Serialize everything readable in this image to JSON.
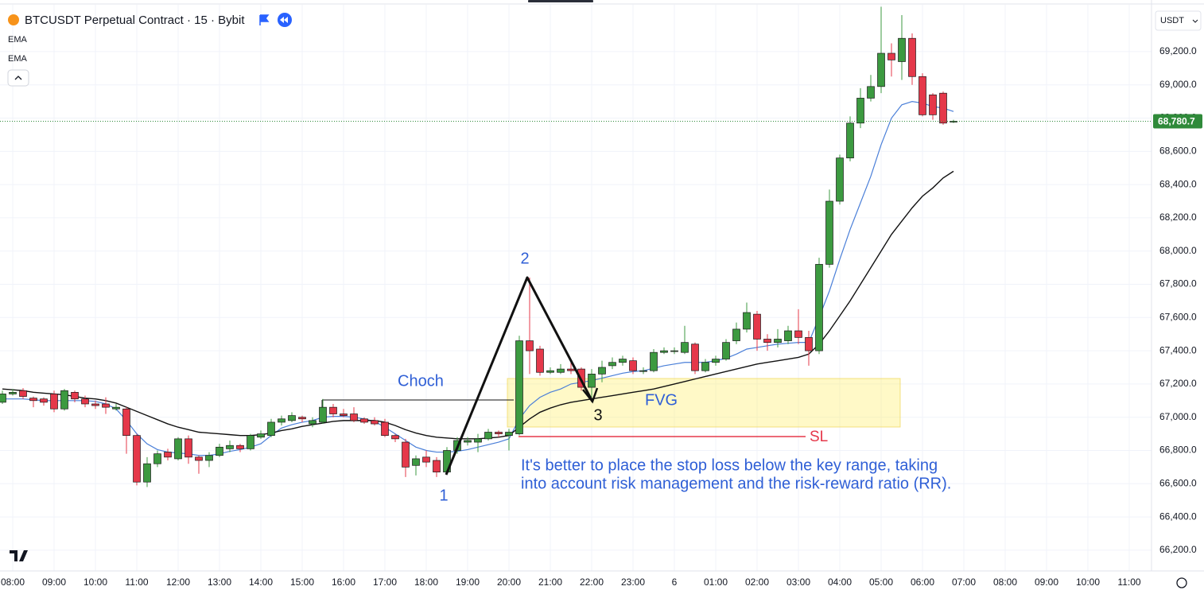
{
  "chart_data": {
    "type": "candlestick",
    "title": "BTCUSDT Perpetual Contract · 15 · Bybit",
    "currency": "USDT",
    "up_color": "#3c9a40",
    "down_color": "#e5384a",
    "grid": true,
    "ylim": [
      66075,
      69482
    ],
    "yticks": [
      {
        "value": 66200,
        "label": "66,200.0"
      },
      {
        "value": 66400,
        "label": "66,400.0"
      },
      {
        "value": 66600,
        "label": "66,600.0"
      },
      {
        "value": 66800,
        "label": "66,800.0"
      },
      {
        "value": 67000,
        "label": "67,000.0"
      },
      {
        "value": 67200,
        "label": "67,200.0"
      },
      {
        "value": 67400,
        "label": "67,400.0"
      },
      {
        "value": 67600,
        "label": "67,600.0"
      },
      {
        "value": 67800,
        "label": "67,800.0"
      },
      {
        "value": 68000,
        "label": "68,000.0"
      },
      {
        "value": 68200,
        "label": "68,200.0"
      },
      {
        "value": 68400,
        "label": "68,400.0"
      },
      {
        "value": 68600,
        "label": "68,600.0"
      },
      {
        "value": 68800,
        "label": "68,800.0"
      },
      {
        "value": 69000,
        "label": "69,000.0"
      },
      {
        "value": 69200,
        "label": "69,200.0"
      }
    ],
    "last_price": {
      "value": 68780.7,
      "label": "68,780.7",
      "color": "#2f8a3a"
    },
    "categories": [
      null,
      "08:00",
      null,
      null,
      null,
      "09:00",
      null,
      null,
      null,
      "10:00",
      null,
      null,
      null,
      "11:00",
      null,
      null,
      null,
      "12:00",
      null,
      null,
      null,
      "13:00",
      null,
      null,
      null,
      "14:00",
      null,
      null,
      null,
      "15:00",
      null,
      null,
      null,
      "16:00",
      null,
      null,
      null,
      "17:00",
      null,
      null,
      null,
      "18:00",
      null,
      null,
      null,
      "19:00",
      null,
      null,
      null,
      "20:00",
      null,
      null,
      null,
      "21:00",
      null,
      null,
      null,
      "22:00",
      null,
      null,
      null,
      "23:00",
      null,
      null,
      null,
      "6",
      null,
      null,
      null,
      "01:00",
      null,
      null,
      null,
      "02:00",
      null,
      null,
      null,
      "03:00",
      null,
      null,
      null,
      "04:00",
      null,
      null,
      null,
      "05:00",
      null,
      null,
      null,
      "06:00",
      null,
      null,
      null,
      "07:00",
      null,
      null,
      null,
      "08:00",
      null,
      null,
      null,
      "09:00",
      null,
      null,
      null,
      "10:00",
      null,
      null,
      null,
      "11:00",
      null
    ],
    "ohlc": {
      "open": [
        67090,
        67140,
        67160,
        67115,
        67110,
        67140,
        67050,
        67150,
        67110,
        67080,
        67080,
        67050,
        67050,
        66890,
        66610,
        66720,
        66790,
        66750,
        66870,
        66760,
        66740,
        66770,
        66810,
        66830,
        66810,
        66880,
        66890,
        66970,
        66980,
        67000,
        66960,
        66970,
        67060,
        67020,
        67020,
        66990,
        66980,
        66970,
        66890,
        66850,
        66710,
        66760,
        66740,
        66670,
        66800,
        66850,
        66850,
        66870,
        66910,
        66890,
        66900,
        67460,
        67410,
        67270,
        67270,
        67290,
        67290,
        67180,
        67260,
        67310,
        67330,
        67340,
        67280,
        67280,
        67390,
        67400,
        67390,
        67440,
        67280,
        67330,
        67350,
        67460,
        67530,
        67620,
        67470,
        67450,
        67460,
        67520,
        67480,
        67400,
        67920,
        68300,
        68560,
        68770,
        68920,
        68990,
        69190,
        69140,
        69280,
        69050,
        68940,
        68950,
        68780,
        null,
        null,
        null,
        null,
        null,
        null,
        null,
        null,
        null,
        null,
        null,
        null,
        null,
        null,
        null,
        null,
        null,
        null
      ],
      "high": [
        67160,
        67170,
        67175,
        67125,
        67120,
        67160,
        67170,
        67160,
        67130,
        67100,
        67120,
        67080,
        67060,
        66900,
        66760,
        66800,
        66810,
        66880,
        66890,
        66770,
        66790,
        66840,
        66860,
        66840,
        66900,
        66920,
        66990,
        67010,
        67030,
        67010,
        67000,
        67110,
        67080,
        67050,
        67060,
        67000,
        67000,
        66990,
        66900,
        66870,
        66770,
        66800,
        66760,
        66820,
        66880,
        66880,
        66900,
        66930,
        66920,
        66930,
        67490,
        67840,
        67430,
        67300,
        67320,
        67330,
        67300,
        67290,
        67340,
        67360,
        67370,
        67360,
        67300,
        67410,
        67420,
        67420,
        67550,
        67450,
        67350,
        67370,
        67470,
        67570,
        67690,
        67640,
        67500,
        67530,
        67550,
        67650,
        67520,
        67960,
        68370,
        68580,
        68810,
        68980,
        69060,
        69470,
        69250,
        69420,
        69310,
        69070,
        68950,
        68960,
        68790,
        null,
        null,
        null,
        null,
        null,
        null,
        null,
        null,
        null,
        null,
        null,
        null,
        null,
        null,
        null,
        null,
        null,
        null
      ],
      "low": [
        67080,
        67130,
        67110,
        67060,
        67070,
        67030,
        67040,
        67090,
        67060,
        67050,
        67020,
        67040,
        66780,
        66590,
        66580,
        66700,
        66740,
        66740,
        66720,
        66660,
        66700,
        66760,
        66790,
        66790,
        66800,
        66870,
        66880,
        66950,
        66970,
        66970,
        66940,
        66960,
        67000,
        67000,
        66970,
        66960,
        66950,
        66880,
        66850,
        66640,
        66650,
        66700,
        66640,
        66660,
        66780,
        66830,
        66790,
        66860,
        66880,
        66800,
        66890,
        67260,
        67250,
        67260,
        67260,
        67260,
        67160,
        67120,
        67210,
        67290,
        67310,
        67260,
        67260,
        67270,
        67380,
        67380,
        67380,
        67260,
        67270,
        67310,
        67340,
        67440,
        67510,
        67400,
        67400,
        67420,
        67440,
        67440,
        67310,
        67380,
        67900,
        68280,
        68540,
        68740,
        68900,
        68950,
        69050,
        69030,
        69000,
        68810,
        68790,
        68760,
        68770,
        null,
        null,
        null,
        null,
        null,
        null,
        null,
        null,
        null,
        null,
        null,
        null,
        null,
        null,
        null,
        null,
        null,
        null
      ],
      "close": [
        67140,
        67150,
        67125,
        67100,
        67090,
        67050,
        67160,
        67110,
        67080,
        67070,
        67060,
        67060,
        66890,
        66610,
        66720,
        66780,
        66760,
        66870,
        66760,
        66740,
        66770,
        66820,
        66830,
        66810,
        66890,
        66900,
        66970,
        66990,
        67010,
        66990,
        66980,
        67060,
        67020,
        67010,
        66980,
        66970,
        66960,
        66890,
        66870,
        66700,
        66750,
        66730,
        66670,
        66800,
        66860,
        66860,
        66870,
        66910,
        66900,
        66910,
        67460,
        67400,
        67270,
        67280,
        67290,
        67280,
        67180,
        67260,
        67300,
        67330,
        67350,
        67280,
        67280,
        67390,
        67400,
        67400,
        67450,
        67280,
        67330,
        67350,
        67450,
        67530,
        67630,
        67470,
        67450,
        67470,
        67520,
        67480,
        67400,
        67920,
        68300,
        68560,
        68770,
        68920,
        68990,
        69190,
        69150,
        69280,
        69050,
        68820,
        68820,
        68770,
        68780.7,
        null,
        null,
        null,
        null,
        null,
        null,
        null,
        null,
        null,
        null,
        null,
        null,
        null,
        null,
        null,
        null,
        null,
        null
      ]
    },
    "series": [
      {
        "name": "EMA",
        "color": "#4a7fd8",
        "values": [
          67110,
          67110,
          67110,
          67105,
          67100,
          67100,
          67100,
          67100,
          67100,
          67095,
          67080,
          67050,
          66980,
          66900,
          66840,
          66805,
          66790,
          66785,
          66780,
          66770,
          66770,
          66780,
          66795,
          66805,
          66820,
          66840,
          66890,
          66935,
          66955,
          66970,
          66980,
          67000,
          67005,
          67005,
          67000,
          66990,
          66975,
          66940,
          66900,
          66860,
          66820,
          66800,
          66790,
          66790,
          66795,
          66805,
          66820,
          66835,
          66850,
          66870,
          66990,
          67070,
          67120,
          67150,
          67170,
          67200,
          67210,
          67220,
          67235,
          67250,
          67265,
          67275,
          67280,
          67295,
          67310,
          67320,
          67330,
          67330,
          67330,
          67340,
          67355,
          67380,
          67410,
          67420,
          67430,
          67440,
          67445,
          67450,
          67450,
          67600,
          67760,
          67950,
          68130,
          68290,
          68450,
          68640,
          68800,
          68880,
          68900,
          68890,
          68870,
          68860,
          68840,
          null,
          null,
          null,
          null,
          null,
          null,
          null,
          null,
          null,
          null,
          null,
          null,
          null,
          null,
          null,
          null,
          null,
          null
        ]
      },
      {
        "name": "EMA",
        "color": "#111111",
        "values": [
          67170,
          67165,
          67160,
          67150,
          67145,
          67140,
          67135,
          67125,
          67115,
          67110,
          67100,
          67085,
          67060,
          67035,
          67010,
          66985,
          66960,
          66940,
          66925,
          66910,
          66905,
          66900,
          66895,
          66890,
          66890,
          66895,
          66905,
          66920,
          66930,
          66945,
          66955,
          66965,
          66975,
          66980,
          66980,
          66980,
          66980,
          66970,
          66950,
          66925,
          66905,
          66890,
          66880,
          66875,
          66870,
          66870,
          66870,
          66875,
          66880,
          66890,
          66940,
          66990,
          67030,
          67055,
          67075,
          67090,
          67100,
          67110,
          67120,
          67130,
          67140,
          67150,
          67160,
          67170,
          67185,
          67200,
          67215,
          67230,
          67245,
          67260,
          67275,
          67290,
          67305,
          67320,
          67330,
          67340,
          67350,
          67360,
          67380,
          67440,
          67520,
          67610,
          67700,
          67800,
          67900,
          68000,
          68100,
          68180,
          68260,
          68330,
          68380,
          68440,
          68480,
          null,
          null,
          null,
          null,
          null,
          null,
          null,
          null,
          null,
          null,
          null,
          null,
          null,
          null,
          null,
          null,
          null,
          null
        ]
      }
    ],
    "annotations": {
      "point_1": "1",
      "point_2": "2",
      "point_3": "3",
      "choch": "Choch",
      "fvg": "FVG",
      "sl": "SL",
      "note": [
        "It's better to place the stop loss below the key range, taking",
        "into account risk management and the risk-reward ratio (RR)."
      ]
    }
  }
}
